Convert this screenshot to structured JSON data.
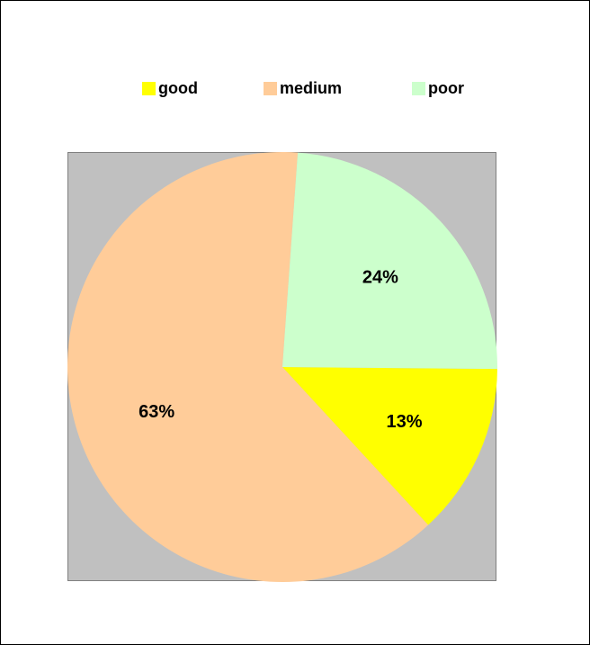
{
  "chart_data": {
    "type": "pie",
    "categories": [
      "good",
      "medium",
      "poor"
    ],
    "values": [
      13,
      63,
      24
    ],
    "labels": [
      "13%",
      "63%",
      "24%"
    ],
    "colors": [
      "#ffff00",
      "#ffcc99",
      "#ccffcc"
    ],
    "plot_background": "#c0c0c0",
    "legend_position": "top",
    "title": ""
  }
}
